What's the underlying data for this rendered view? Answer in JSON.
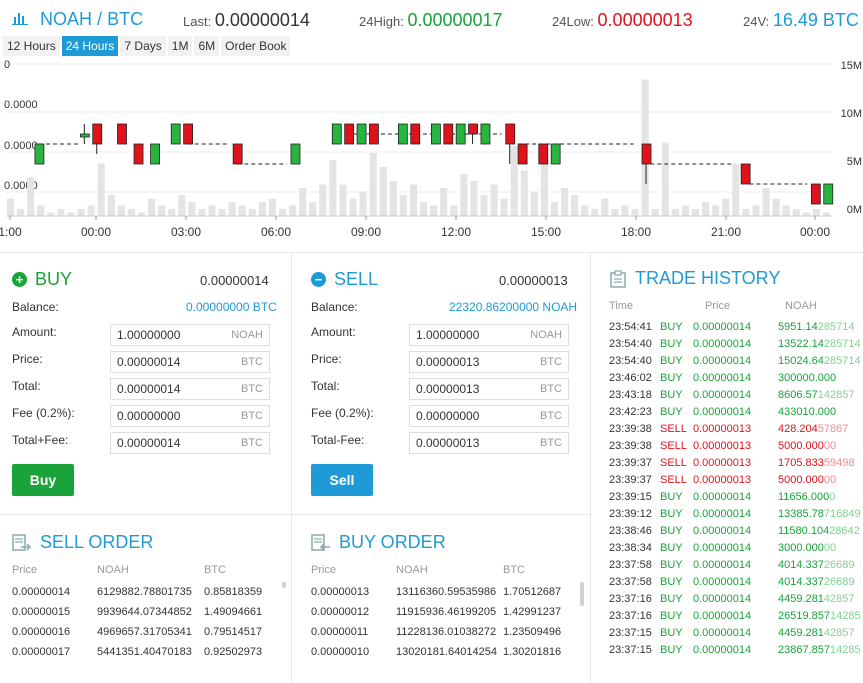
{
  "header": {
    "base": "NOAH",
    "sep": "/",
    "quote": "BTC",
    "last_label": "Last:",
    "last_value": "0.00000014",
    "high_label": "24High:",
    "high_value": "0.00000017",
    "low_label": "24Low:",
    "low_value": "0.00000013",
    "vol_label": "24V:",
    "vol_value": "16.49 BTC"
  },
  "tabs": [
    "12 Hours",
    "24 Hours",
    "7 Days",
    "1M",
    "6M",
    "Order Book"
  ],
  "active_tab": "24 Hours",
  "chart": {
    "left_axis": [
      "0",
      "0.0000",
      "0.0000",
      "0.0000"
    ],
    "right_axis": [
      "15M",
      "10M",
      "5M",
      "0M"
    ],
    "x_labels": [
      "1:00",
      "00:00",
      "03:00",
      "06:00",
      "09:00",
      "12:00",
      "15:00",
      "18:00",
      "21:00",
      "00:00"
    ],
    "volume_levels": [
      0.5,
      0.2,
      1.1,
      0.3,
      0.1,
      0.2,
      0.1,
      0.2,
      0.3,
      1.5,
      0.6,
      0.3,
      0.2,
      0.1,
      0.5,
      0.3,
      0.2,
      0.6,
      0.4,
      0.2,
      0.3,
      0.2,
      0.4,
      0.3,
      0.2,
      0.4,
      0.5,
      0.2,
      0.3,
      0.8,
      0.4,
      0.9,
      1.6,
      0.9,
      0.5,
      0.7,
      1.8,
      1.4,
      1.0,
      0.6,
      0.9,
      0.4,
      0.3,
      0.8,
      0.3,
      1.2,
      1.0,
      0.6,
      0.9,
      0.5,
      2.0,
      1.3,
      0.7,
      1.5,
      0.4,
      0.8,
      0.6,
      0.3,
      0.2,
      0.5,
      0.2,
      0.3,
      0.2,
      3.9,
      0.2,
      2.1,
      0.2,
      0.3,
      0.2,
      0.4,
      0.3,
      0.5,
      1.5,
      0.2,
      0.3,
      0.8,
      0.5,
      0.3,
      0.2,
      0.1,
      0.2,
      0.1
    ]
  },
  "buy_panel": {
    "title": "BUY",
    "price": "0.00000014",
    "balance_label": "Balance:",
    "balance_value": "0.00000000 BTC",
    "rows": [
      {
        "label": "Amount:",
        "value": "1.00000000",
        "unit": "NOAH"
      },
      {
        "label": "Price:",
        "value": "0.00000014",
        "unit": "BTC"
      },
      {
        "label": "Total:",
        "value": "0.00000014",
        "unit": "BTC"
      },
      {
        "label": "Fee (0.2%):",
        "value": "0.00000000",
        "unit": "BTC"
      },
      {
        "label": "Total+Fee:",
        "value": "0.00000014",
        "unit": "BTC"
      }
    ],
    "button": "Buy"
  },
  "sell_panel": {
    "title": "SELL",
    "price": "0.00000013",
    "balance_label": "Balance:",
    "balance_value": "22320.86200000 NOAH",
    "rows": [
      {
        "label": "Amount:",
        "value": "1.00000000",
        "unit": "NOAH"
      },
      {
        "label": "Price:",
        "value": "0.00000013",
        "unit": "BTC"
      },
      {
        "label": "Total:",
        "value": "0.00000013",
        "unit": "BTC"
      },
      {
        "label": "Fee (0.2%):",
        "value": "0.00000000",
        "unit": "BTC"
      },
      {
        "label": "Total-Fee:",
        "value": "0.00000013",
        "unit": "BTC"
      }
    ],
    "button": "Sell"
  },
  "sell_order": {
    "title": "SELL ORDER",
    "headers": [
      "Price",
      "NOAH",
      "BTC"
    ],
    "rows": [
      [
        "0.00000014",
        "6129882.78801735",
        "0.85818359"
      ],
      [
        "0.00000015",
        "9939644.07344852",
        "1.49094661"
      ],
      [
        "0.00000016",
        "4969657.31705341",
        "0.79514517"
      ],
      [
        "0.00000017",
        "5441351.40470183",
        "0.92502973"
      ]
    ]
  },
  "buy_order": {
    "title": "BUY ORDER",
    "headers": [
      "Price",
      "NOAH",
      "BTC"
    ],
    "rows": [
      [
        "0.00000013",
        "13116360.59535986",
        "1.70512687"
      ],
      [
        "0.00000012",
        "11915936.46199205",
        "1.42991237"
      ],
      [
        "0.00000011",
        "11228136.01038272",
        "1.23509496"
      ],
      [
        "0.00000010",
        "13020181.64014254",
        "1.30201816"
      ]
    ]
  },
  "trade_history": {
    "title": "TRADE HISTORY",
    "headers": [
      "Time",
      "Price",
      "NOAH"
    ],
    "rows": [
      [
        "23:54:41",
        "BUY",
        "0.00000014",
        "5951.14",
        "285714"
      ],
      [
        "23:54:40",
        "BUY",
        "0.00000014",
        "13522.14",
        "285714"
      ],
      [
        "23:54:40",
        "BUY",
        "0.00000014",
        "15024.64",
        "285714"
      ],
      [
        "23:46:02",
        "BUY",
        "0.00000014",
        "300000.000",
        ""
      ],
      [
        "23:43:18",
        "BUY",
        "0.00000014",
        "8606.57",
        "142857"
      ],
      [
        "23:42:23",
        "BUY",
        "0.00000014",
        "433010.000",
        ""
      ],
      [
        "23:39:38",
        "SELL",
        "0.00000013",
        "428.204",
        "57867"
      ],
      [
        "23:39:38",
        "SELL",
        "0.00000013",
        "5000.000",
        "00"
      ],
      [
        "23:39:37",
        "SELL",
        "0.00000013",
        "1705.833",
        "59498"
      ],
      [
        "23:39:37",
        "SELL",
        "0.00000013",
        "5000.000",
        "00"
      ],
      [
        "23:39:15",
        "BUY",
        "0.00000014",
        "11656.000",
        "0"
      ],
      [
        "23:39:12",
        "BUY",
        "0.00000014",
        "13385.78",
        "716849"
      ],
      [
        "23:38:46",
        "BUY",
        "0.00000014",
        "11580.104",
        "28642"
      ],
      [
        "23:38:34",
        "BUY",
        "0.00000014",
        "3000.000",
        "00"
      ],
      [
        "23:37:58",
        "BUY",
        "0.00000014",
        "4014.337",
        "26689"
      ],
      [
        "23:37:58",
        "BUY",
        "0.00000014",
        "4014.337",
        "26689"
      ],
      [
        "23:37:16",
        "BUY",
        "0.00000014",
        "4459.281",
        "42857"
      ],
      [
        "23:37:16",
        "BUY",
        "0.00000014",
        "26519.857",
        "14285"
      ],
      [
        "23:37:15",
        "BUY",
        "0.00000014",
        "4459.281",
        "42857"
      ],
      [
        "23:37:15",
        "BUY",
        "0.00000014",
        "23867.857",
        "14285"
      ]
    ]
  },
  "colors": {
    "accent": "#1e9bd7",
    "buy": "#1aa33a",
    "sell": "#e0121b",
    "up_candle": "#27b53f",
    "down_candle": "#e0121b"
  }
}
